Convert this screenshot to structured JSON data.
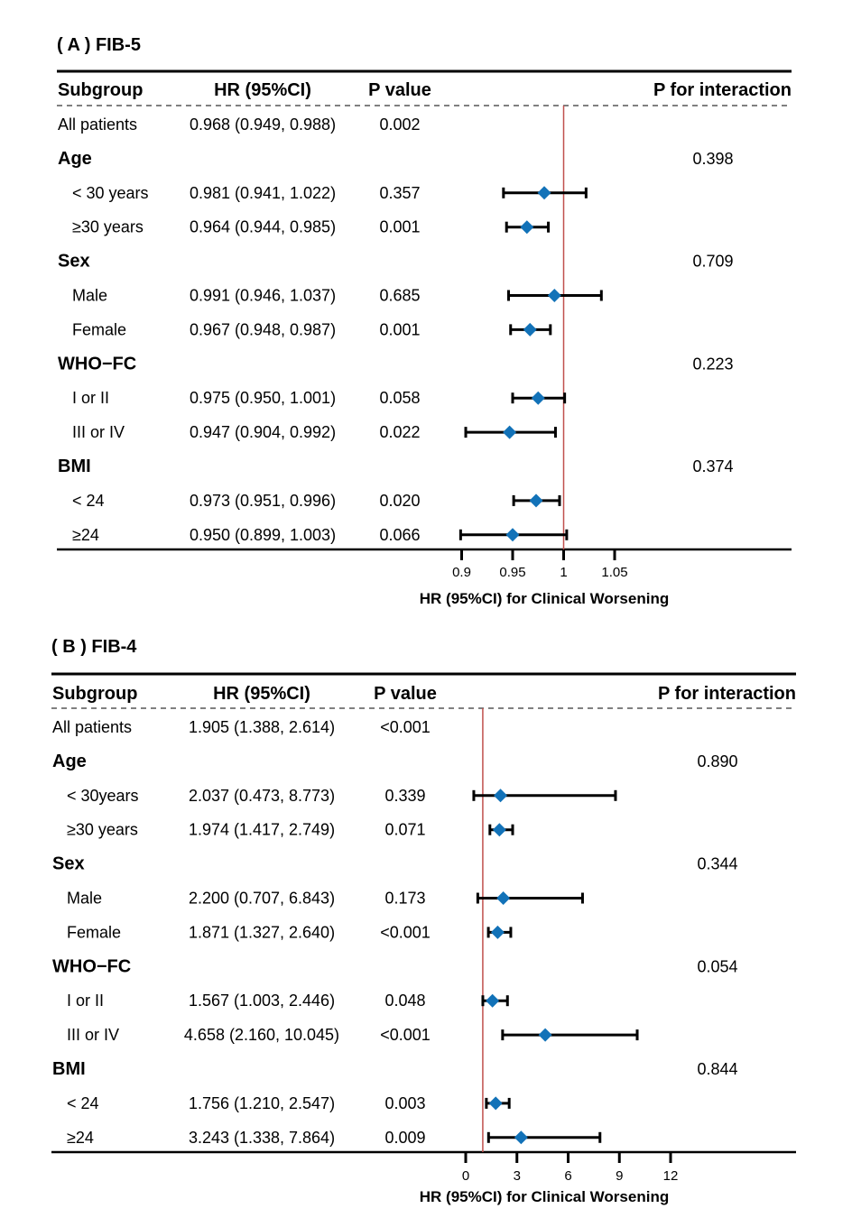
{
  "chart_data": [
    {
      "type": "forest",
      "panel_label": "( A )  FIB-5",
      "headers": {
        "subgroup": "Subgroup",
        "hr": "HR (95%CI)",
        "p": "P value",
        "p_interaction": "P for interaction"
      },
      "xlabel": "HR (95%CI) for Clinical Worsening",
      "xlim": [
        0.9,
        1.05
      ],
      "xticks": [
        0.9,
        0.95,
        1,
        1.05
      ],
      "xtick_labels": [
        "0.9",
        "0.95",
        "1",
        "1.05"
      ],
      "reference_line": 1,
      "marker_color": "#1272B8",
      "reference_color": "#C0504D",
      "rows": [
        {
          "label": "All patients",
          "type": "item",
          "indent": false,
          "hr_text": "0.968 (0.949, 0.988)",
          "p": "0.002",
          "p_int": "",
          "hr": 0.968,
          "lo": 0.949,
          "hi": 0.988,
          "plot": false
        },
        {
          "label": "Age",
          "type": "group",
          "p_int": "0.398"
        },
        {
          "label": "< 30 years",
          "type": "item",
          "indent": true,
          "hr_text": "0.981 (0.941, 1.022)",
          "p": "0.357",
          "hr": 0.981,
          "lo": 0.941,
          "hi": 1.022,
          "plot": true
        },
        {
          "label": "≥30 years",
          "type": "item",
          "indent": true,
          "hr_text": "0.964 (0.944, 0.985)",
          "p": "0.001",
          "hr": 0.964,
          "lo": 0.944,
          "hi": 0.985,
          "plot": true
        },
        {
          "label": "Sex",
          "type": "group",
          "p_int": "0.709"
        },
        {
          "label": "Male",
          "type": "item",
          "indent": true,
          "hr_text": "0.991 (0.946, 1.037)",
          "p": "0.685",
          "hr": 0.991,
          "lo": 0.946,
          "hi": 1.037,
          "plot": true
        },
        {
          "label": "Female",
          "type": "item",
          "indent": true,
          "hr_text": "0.967 (0.948, 0.987)",
          "p": "0.001",
          "hr": 0.967,
          "lo": 0.948,
          "hi": 0.987,
          "plot": true
        },
        {
          "label": "WHO−FC",
          "type": "group",
          "p_int": "0.223"
        },
        {
          "label": "I or II",
          "type": "item",
          "indent": true,
          "hr_text": "0.975 (0.950, 1.001)",
          "p": "0.058",
          "hr": 0.975,
          "lo": 0.95,
          "hi": 1.001,
          "plot": true
        },
        {
          "label": "III or IV",
          "type": "item",
          "indent": true,
          "hr_text": "0.947 (0.904, 0.992)",
          "p": "0.022",
          "hr": 0.947,
          "lo": 0.904,
          "hi": 0.992,
          "plot": true
        },
        {
          "label": "BMI",
          "type": "group",
          "p_int": "0.374"
        },
        {
          "label": "< 24",
          "type": "item",
          "indent": true,
          "hr_text": "0.973 (0.951, 0.996)",
          "p": "0.020",
          "hr": 0.973,
          "lo": 0.951,
          "hi": 0.996,
          "plot": true
        },
        {
          "label": "≥24",
          "type": "item",
          "indent": true,
          "hr_text": "0.950 (0.899, 1.003)",
          "p": "0.066",
          "hr": 0.95,
          "lo": 0.899,
          "hi": 1.003,
          "plot": true
        }
      ]
    },
    {
      "type": "forest",
      "panel_label": "( B )  FIB-4",
      "headers": {
        "subgroup": "Subgroup",
        "hr": "HR (95%CI)",
        "p": "P value",
        "p_interaction": "P for interaction"
      },
      "xlabel": "HR (95%CI) for Clinical Worsening",
      "xlim": [
        0,
        12
      ],
      "xticks": [
        0,
        3,
        6,
        9,
        12
      ],
      "xtick_labels": [
        "0",
        "3",
        "6",
        "9",
        "12"
      ],
      "reference_line": 1,
      "marker_color": "#1272B8",
      "reference_color": "#C0504D",
      "rows": [
        {
          "label": "All patients",
          "type": "item",
          "indent": false,
          "hr_text": "1.905 (1.388, 2.614)",
          "p": "<0.001",
          "p_int": "",
          "hr": 1.905,
          "lo": 1.388,
          "hi": 2.614,
          "plot": false
        },
        {
          "label": "Age",
          "type": "group",
          "p_int": "0.890"
        },
        {
          "label": "< 30years",
          "type": "item",
          "indent": true,
          "hr_text": "2.037 (0.473, 8.773)",
          "p": "0.339",
          "hr": 2.037,
          "lo": 0.473,
          "hi": 8.773,
          "plot": true
        },
        {
          "label": "≥30 years",
          "type": "item",
          "indent": true,
          "hr_text": "1.974 (1.417, 2.749)",
          "p": "0.071",
          "hr": 1.974,
          "lo": 1.417,
          "hi": 2.749,
          "plot": true
        },
        {
          "label": "Sex",
          "type": "group",
          "p_int": "0.344"
        },
        {
          "label": "Male",
          "type": "item",
          "indent": true,
          "hr_text": "2.200 (0.707, 6.843)",
          "p": "0.173",
          "hr": 2.2,
          "lo": 0.707,
          "hi": 6.843,
          "plot": true
        },
        {
          "label": "Female",
          "type": "item",
          "indent": true,
          "hr_text": "1.871 (1.327, 2.640)",
          "p": "<0.001",
          "hr": 1.871,
          "lo": 1.327,
          "hi": 2.64,
          "plot": true
        },
        {
          "label": "WHO−FC",
          "type": "group",
          "p_int": "0.054"
        },
        {
          "label": "I or II",
          "type": "item",
          "indent": true,
          "hr_text": "1.567 (1.003, 2.446)",
          "p": "0.048",
          "hr": 1.567,
          "lo": 1.003,
          "hi": 2.446,
          "plot": true
        },
        {
          "label": "III or IV",
          "type": "item",
          "indent": true,
          "hr_text": "4.658 (2.160, 10.045)",
          "p": "<0.001",
          "hr": 4.658,
          "lo": 2.16,
          "hi": 10.045,
          "plot": true
        },
        {
          "label": "BMI",
          "type": "group",
          "p_int": "0.844"
        },
        {
          "label": "< 24",
          "type": "item",
          "indent": true,
          "hr_text": "1.756 (1.210, 2.547)",
          "p": "0.003",
          "hr": 1.756,
          "lo": 1.21,
          "hi": 2.547,
          "plot": true
        },
        {
          "label": "≥24",
          "type": "item",
          "indent": true,
          "hr_text": "3.243 (1.338, 7.864)",
          "p": "0.009",
          "hr": 3.243,
          "lo": 1.338,
          "hi": 7.864,
          "plot": true
        }
      ]
    }
  ]
}
